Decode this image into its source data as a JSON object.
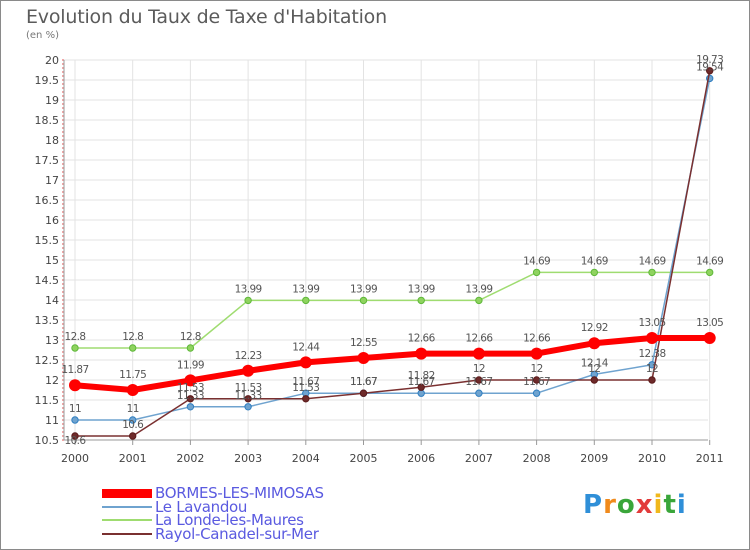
{
  "title": "Evolution du Taux de Taxe d'Habitation",
  "unit": "(en %)",
  "brand": {
    "text": "Proxiti",
    "letter_colors": [
      "#2f8fd8",
      "#f08a1c",
      "#3aa63a",
      "#e23b3b",
      "#f0b81c",
      "#3aa63a",
      "#2f8fd8"
    ]
  },
  "chart_data": {
    "type": "line",
    "title": "Evolution du Taux de Taxe d'Habitation",
    "ylabel": "(en %)",
    "xlabel": "",
    "x": [
      "2000",
      "2001",
      "2002",
      "2003",
      "2004",
      "2005",
      "2006",
      "2007",
      "2008",
      "2009",
      "2010",
      "2011"
    ],
    "ylim": [
      10.5,
      20
    ],
    "yticks": [
      "10.5",
      "11",
      "11.5",
      "12",
      "12.5",
      "13",
      "13.5",
      "14",
      "14.5",
      "15",
      "15.5",
      "16",
      "16.5",
      "17",
      "17.5",
      "18",
      "18.5",
      "19",
      "19.5",
      "20"
    ],
    "grid": true,
    "legend_position": "bottom-left",
    "series": [
      {
        "name": "BORMES-LES-MIMOSAS",
        "color": "#ff0000",
        "values": [
          11.87,
          11.75,
          11.99,
          12.23,
          12.44,
          12.55,
          12.66,
          12.66,
          12.66,
          12.92,
          13.05,
          13.05
        ],
        "labels": [
          "11.87",
          "11.75",
          "11.99",
          "12.23",
          "12.44",
          "12.55",
          "12.66",
          "12.66",
          "12.66",
          "12.92",
          "13.05",
          "13.05"
        ]
      },
      {
        "name": "Le Lavandou",
        "color": "#6fa3cf",
        "values": [
          11,
          11,
          11.33,
          11.33,
          11.67,
          11.67,
          11.67,
          11.67,
          11.67,
          12.14,
          12.38,
          19.54
        ],
        "labels": [
          "11",
          "11",
          "11.33",
          "11.33",
          "11.67",
          "11.67",
          "11.67",
          "11.67",
          "11.67",
          "12.14",
          "12.38",
          "19.54"
        ]
      },
      {
        "name": "La Londe-les-Maures",
        "color": "#8fd35f",
        "values": [
          12.8,
          12.8,
          12.8,
          13.99,
          13.99,
          13.99,
          13.99,
          13.99,
          14.69,
          14.69,
          14.69,
          14.69
        ],
        "labels": [
          "12.8",
          "12.8",
          "12.8",
          "13.99",
          "13.99",
          "13.99",
          "13.99",
          "13.99",
          "14.69",
          "14.69",
          "14.69",
          "14.69"
        ]
      },
      {
        "name": "Rayol-Canadel-sur-Mer",
        "color": "#6e2a2a",
        "values": [
          10.6,
          10.6,
          11.53,
          11.53,
          11.53,
          11.67,
          11.82,
          12,
          12,
          12,
          12,
          19.73
        ],
        "labels": [
          "10.6",
          "10.6",
          "11.53",
          "11.53",
          "11.53",
          "11.67",
          "11.82",
          "12",
          "12",
          "12",
          "12",
          "19.73"
        ]
      }
    ]
  }
}
